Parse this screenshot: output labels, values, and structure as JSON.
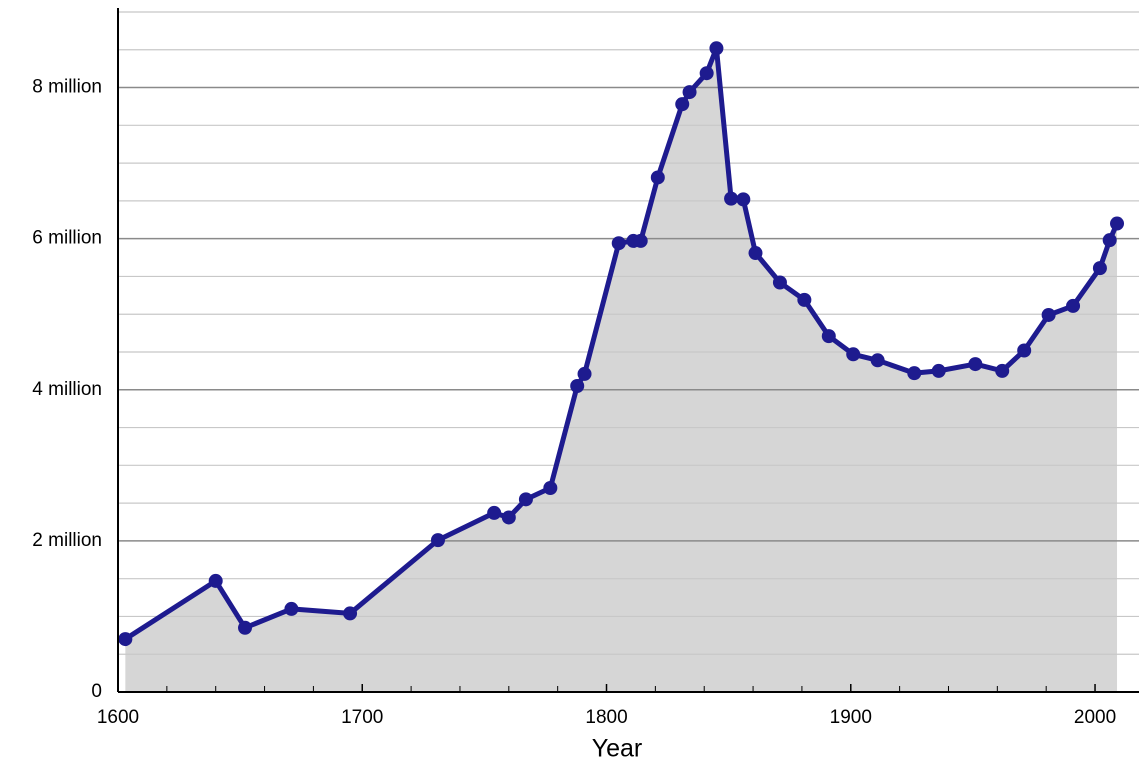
{
  "chart_data": {
    "type": "area-line",
    "x_label": "Year",
    "x": [
      1603,
      1640,
      1652,
      1671,
      1695,
      1731,
      1754,
      1760,
      1767,
      1777,
      1788,
      1791,
      1805,
      1811,
      1814,
      1821,
      1831,
      1834,
      1841,
      1845,
      1851,
      1856,
      1861,
      1871,
      1881,
      1891,
      1901,
      1911,
      1926,
      1936,
      1951,
      1962,
      1971,
      1981,
      1991,
      2002,
      2006,
      2009
    ],
    "series": [
      {
        "color": "#1e1b8f",
        "fill": "#d6d6d6",
        "values": [
          700000,
          1470000,
          850000,
          1100000,
          1040000,
          2010000,
          2370000,
          2310000,
          2550000,
          2700000,
          4050000,
          4210000,
          5940000,
          5970000,
          5970000,
          6810000,
          7780000,
          7940000,
          8190000,
          8520000,
          6530000,
          6520000,
          5810000,
          5420000,
          5190000,
          4710000,
          4470000,
          4390000,
          4220000,
          4250000,
          4340000,
          4250000,
          4520000,
          4990000,
          5110000,
          5610000,
          5980000,
          6200000
        ]
      }
    ],
    "xlim": [
      1600,
      2018
    ],
    "xticks": [
      1600,
      1700,
      1800,
      1900,
      2000
    ],
    "x_minor_ticks": [
      1620,
      1640,
      1660,
      1680,
      1720,
      1740,
      1760,
      1780,
      1820,
      1840,
      1860,
      1880,
      1920,
      1940,
      1960,
      1980
    ],
    "ylim": [
      0,
      9000000
    ],
    "yticks": [
      0,
      {
        "value": 2000000,
        "label": "2 million"
      },
      {
        "value": 4000000,
        "label": "4 million"
      },
      {
        "value": 6000000,
        "label": "6 million"
      },
      {
        "value": 8000000,
        "label": "8 million"
      }
    ],
    "y_minor_ticks": [
      500000,
      1000000,
      1500000,
      2500000,
      3000000,
      3500000,
      4500000,
      5000000,
      5500000,
      6500000,
      7000000,
      7500000,
      8500000,
      9000000
    ],
    "grid": true
  }
}
